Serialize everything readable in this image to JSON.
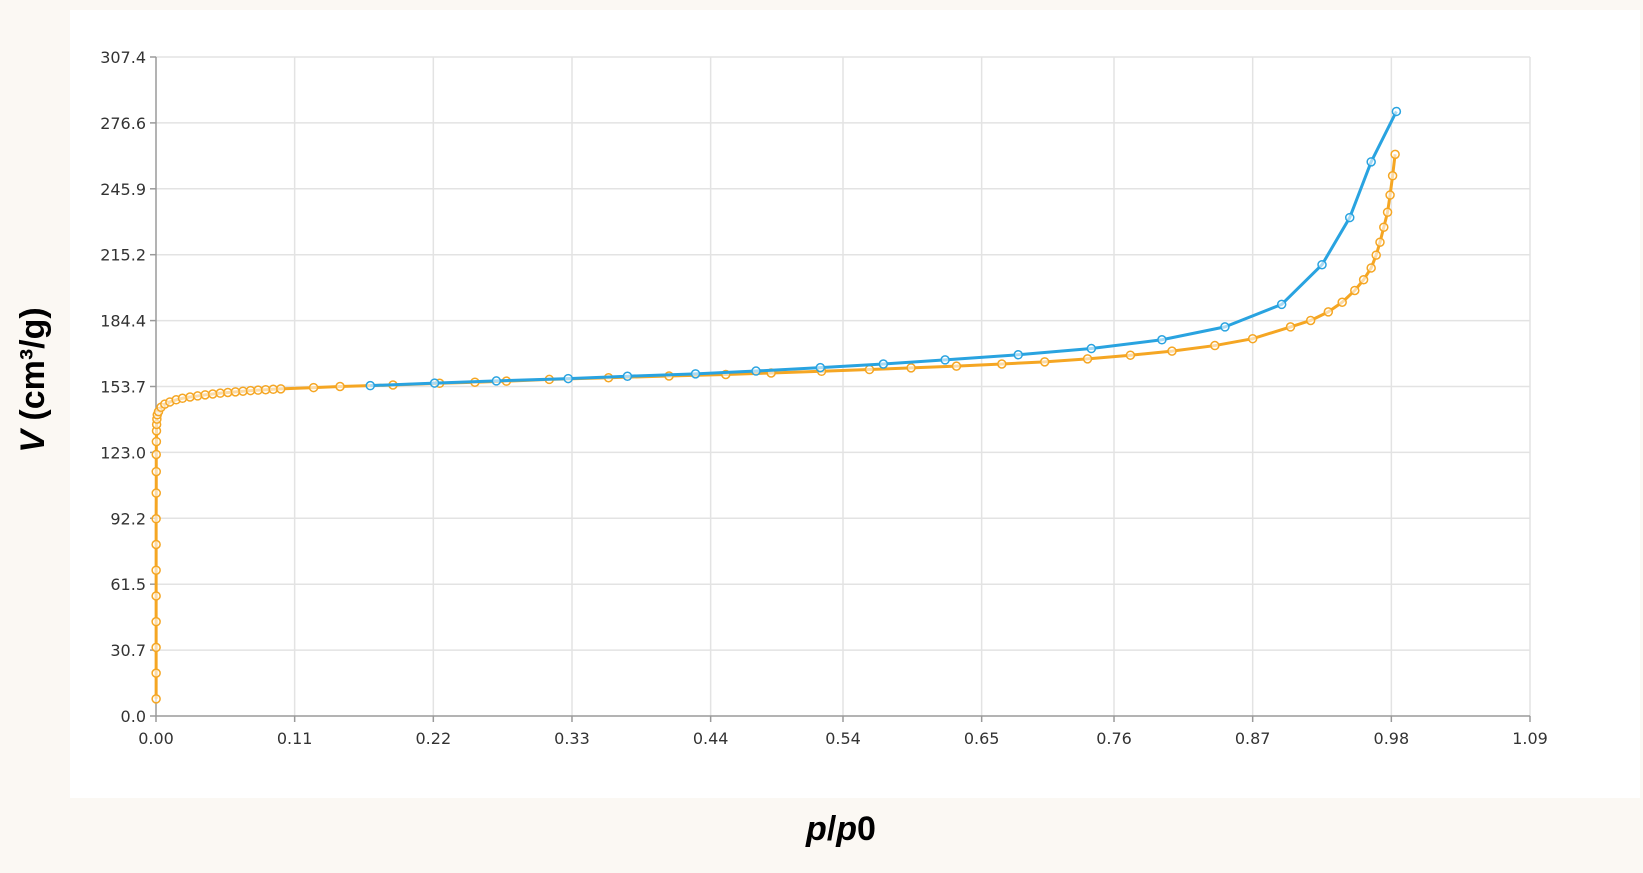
{
  "chart_data": {
    "type": "line",
    "xlabel_italic": "p",
    "xlabel_mid": "/",
    "xlabel_italic2": "p",
    "xlabel_tail": "0",
    "ylabel_italic": "V",
    "ylabel_rest": " (cm³/g)",
    "xlim": [
      0,
      1.09
    ],
    "ylim": [
      0,
      307.4
    ],
    "xticks": [
      "0.00",
      "0.11",
      "0.22",
      "0.33",
      "0.44",
      "0.54",
      "0.65",
      "0.76",
      "0.87",
      "0.98",
      "1.09"
    ],
    "xtick_values": [
      0,
      0.11,
      0.22,
      0.33,
      0.44,
      0.545,
      0.655,
      0.76,
      0.87,
      0.98,
      1.09
    ],
    "yticks": [
      "0.0",
      "30.7",
      "61.5",
      "92.2",
      "123.0",
      "153.7",
      "184.4",
      "215.2",
      "245.9",
      "276.6",
      "307.4"
    ],
    "ytick_values": [
      0,
      30.74,
      61.48,
      92.22,
      122.96,
      153.7,
      184.44,
      215.18,
      245.92,
      276.66,
      307.4
    ],
    "grid": true,
    "series": [
      {
        "color": "#f5a623",
        "role": "adsorption",
        "x": [
          0.0001,
          0.0001,
          0.0001,
          0.0001,
          0.0001,
          0.0001,
          0.0001,
          0.0001,
          0.0002,
          0.0002,
          0.0002,
          0.0003,
          0.0004,
          0.0005,
          0.0007,
          0.001,
          0.002,
          0.004,
          0.007,
          0.011,
          0.016,
          0.021,
          0.027,
          0.033,
          0.039,
          0.045,
          0.051,
          0.057,
          0.063,
          0.069,
          0.075,
          0.081,
          0.087,
          0.093,
          0.099,
          0.125,
          0.146,
          0.188,
          0.225,
          0.253,
          0.278,
          0.312,
          0.359,
          0.407,
          0.452,
          0.488,
          0.528,
          0.566,
          0.599,
          0.635,
          0.671,
          0.705,
          0.739,
          0.773,
          0.806,
          0.84,
          0.87,
          0.9,
          0.916,
          0.93,
          0.941,
          0.951,
          0.958,
          0.964,
          0.968,
          0.971,
          0.974,
          0.977,
          0.979,
          0.981,
          0.983
        ],
        "y": [
          8,
          20,
          32,
          44,
          56,
          68,
          80,
          92,
          104,
          114,
          122,
          128,
          133,
          136,
          138.5,
          140.5,
          142,
          144,
          145.5,
          146.5,
          147.5,
          148.2,
          148.8,
          149.3,
          149.8,
          150.2,
          150.6,
          150.9,
          151.2,
          151.5,
          151.8,
          152,
          152.2,
          152.4,
          152.6,
          153.2,
          153.7,
          154.4,
          155.2,
          155.7,
          156.2,
          157,
          157.8,
          158.6,
          159.3,
          160,
          160.8,
          161.6,
          162.4,
          163.2,
          164.2,
          165.2,
          166.6,
          168.3,
          170.2,
          172.8,
          176,
          181.5,
          184.5,
          188.5,
          193,
          198.5,
          203.5,
          209,
          215,
          221,
          228,
          235,
          243,
          252,
          262
        ]
      },
      {
        "color": "#29a3e0",
        "role": "desorption",
        "x": [
          0.17,
          0.221,
          0.27,
          0.327,
          0.374,
          0.428,
          0.476,
          0.527,
          0.577,
          0.626,
          0.684,
          0.742,
          0.798,
          0.848,
          0.893,
          0.925,
          0.947,
          0.964,
          0.984
        ],
        "y": [
          154.1,
          155.3,
          156.3,
          157.4,
          158.5,
          159.6,
          160.9,
          162.5,
          164.2,
          166.1,
          168.5,
          171.4,
          175.5,
          181.5,
          192,
          210.5,
          232.5,
          258.5,
          282
        ]
      }
    ]
  }
}
